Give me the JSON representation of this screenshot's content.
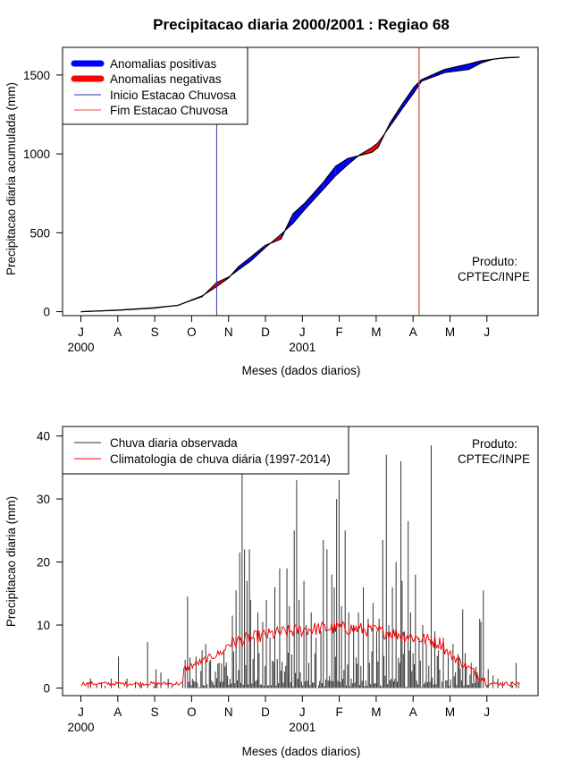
{
  "title": "Precipitacao diaria 2000/2001 : Regiao 68",
  "chart_data": [
    {
      "type": "area",
      "ylabel": "Precipitacao diaria acumulada (mm)",
      "xlabel": "Meses (dados diarios)",
      "months": [
        "J",
        "A",
        "S",
        "O",
        "N",
        "D",
        "J",
        "F",
        "M",
        "A",
        "M",
        "J"
      ],
      "year_labels": [
        {
          "text": "2000",
          "month_index": 0
        },
        {
          "text": "2001",
          "month_index": 6
        }
      ],
      "ylim": [
        -25,
        1675
      ],
      "yticks": [
        0,
        500,
        1000,
        1500
      ],
      "legend": [
        "Anomalias positivas",
        "Anomalias negativas",
        "Inicio Estacao Chuvosa",
        "Fim Estacao Chuvosa"
      ],
      "product_text": [
        "Produto:",
        "CPTEC/INPE"
      ],
      "inicio_day": 112,
      "fim_day": 279,
      "colors": {
        "positive": "#0000ff",
        "negative": "#ff0000",
        "inicio": "#3333aa",
        "fim": "#dd5533"
      },
      "observed": [
        [
          0,
          0
        ],
        [
          30,
          10
        ],
        [
          60,
          25
        ],
        [
          80,
          40
        ],
        [
          100,
          100
        ],
        [
          112,
          160
        ],
        [
          122,
          215
        ],
        [
          130,
          285
        ],
        [
          140,
          345
        ],
        [
          152,
          420
        ],
        [
          165,
          460
        ],
        [
          175,
          620
        ],
        [
          185,
          690
        ],
        [
          200,
          820
        ],
        [
          210,
          920
        ],
        [
          220,
          970
        ],
        [
          230,
          990
        ],
        [
          240,
          1010
        ],
        [
          245,
          1040
        ],
        [
          255,
          1195
        ],
        [
          265,
          1315
        ],
        [
          275,
          1425
        ],
        [
          281,
          1470
        ],
        [
          300,
          1535
        ],
        [
          320,
          1570
        ],
        [
          330,
          1590
        ],
        [
          340,
          1600
        ],
        [
          350,
          1610
        ],
        [
          362,
          1613
        ]
      ],
      "climatology": [
        [
          0,
          0
        ],
        [
          30,
          8
        ],
        [
          60,
          22
        ],
        [
          80,
          40
        ],
        [
          100,
          95
        ],
        [
          112,
          185
        ],
        [
          122,
          220
        ],
        [
          130,
          265
        ],
        [
          140,
          320
        ],
        [
          152,
          405
        ],
        [
          165,
          490
        ],
        [
          175,
          560
        ],
        [
          185,
          650
        ],
        [
          200,
          775
        ],
        [
          210,
          860
        ],
        [
          220,
          930
        ],
        [
          230,
          995
        ],
        [
          240,
          1040
        ],
        [
          245,
          1070
        ],
        [
          255,
          1175
        ],
        [
          265,
          1285
        ],
        [
          275,
          1390
        ],
        [
          281,
          1460
        ],
        [
          300,
          1515
        ],
        [
          320,
          1535
        ],
        [
          330,
          1575
        ],
        [
          340,
          1600
        ],
        [
          350,
          1608
        ],
        [
          362,
          1613
        ]
      ]
    },
    {
      "type": "bar",
      "ylabel": "Precipitacao diaria (mm)",
      "xlabel": "Meses (dados diarios)",
      "months": [
        "J",
        "A",
        "S",
        "O",
        "N",
        "D",
        "J",
        "F",
        "M",
        "A",
        "M",
        "J"
      ],
      "year_labels": [
        {
          "text": "2000",
          "month_index": 0
        },
        {
          "text": "2001",
          "month_index": 6
        }
      ],
      "ylim": [
        -1.2,
        41.5
      ],
      "yticks": [
        0,
        10,
        20,
        30,
        40
      ],
      "legend": [
        "Chuva diaria observada",
        "Climatologia de chuva diária (1997-2014)"
      ],
      "product_text": [
        "Produto:",
        "CPTEC/INPE"
      ],
      "colors": {
        "observed": "#333333",
        "climatology": "#ff0000"
      },
      "daily_peaks": [
        [
          8,
          1.5
        ],
        [
          17,
          0.8
        ],
        [
          25,
          1.5
        ],
        [
          31,
          5
        ],
        [
          38,
          1.5
        ],
        [
          45,
          1
        ],
        [
          55,
          7.3
        ],
        [
          62,
          3
        ],
        [
          66,
          2.5
        ],
        [
          72,
          1.5
        ],
        [
          84,
          1.2
        ],
        [
          86,
          4.5
        ],
        [
          88,
          14.5
        ],
        [
          95,
          5
        ],
        [
          100,
          6
        ],
        [
          103,
          7
        ],
        [
          107,
          4.5
        ],
        [
          111,
          2.6
        ],
        [
          114,
          4
        ],
        [
          118,
          6
        ],
        [
          125,
          11.5
        ],
        [
          128,
          15.5
        ],
        [
          131,
          21.5
        ],
        [
          133,
          34
        ],
        [
          135,
          22
        ],
        [
          137,
          17
        ],
        [
          139,
          22
        ],
        [
          140,
          14
        ],
        [
          143,
          8
        ],
        [
          146,
          12
        ],
        [
          150,
          10.5
        ],
        [
          153,
          14
        ],
        [
          156,
          8
        ],
        [
          160,
          16
        ],
        [
          164,
          19
        ],
        [
          170,
          19
        ],
        [
          172,
          13
        ],
        [
          176,
          25
        ],
        [
          178,
          33
        ],
        [
          180,
          14
        ],
        [
          184,
          17
        ],
        [
          186,
          10
        ],
        [
          190,
          12
        ],
        [
          194,
          8
        ],
        [
          198,
          9
        ],
        [
          200,
          23.5
        ],
        [
          203,
          22
        ],
        [
          207,
          18
        ],
        [
          209,
          16
        ],
        [
          211,
          30
        ],
        [
          213,
          33
        ],
        [
          215,
          13
        ],
        [
          218,
          25
        ],
        [
          221,
          12
        ],
        [
          225,
          10
        ],
        [
          229,
          12
        ],
        [
          233,
          16
        ],
        [
          237,
          11
        ],
        [
          241,
          13.5
        ],
        [
          244,
          9
        ],
        [
          246,
          11
        ],
        [
          249,
          23.5
        ],
        [
          252,
          37
        ],
        [
          254,
          10
        ],
        [
          257,
          16
        ],
        [
          260,
          20
        ],
        [
          264,
          36
        ],
        [
          265,
          17
        ],
        [
          267,
          9
        ],
        [
          270,
          26.5
        ],
        [
          272,
          12
        ],
        [
          276,
          18
        ],
        [
          279,
          8
        ],
        [
          282,
          10
        ],
        [
          285,
          7
        ],
        [
          289,
          38.5
        ],
        [
          292,
          9
        ],
        [
          295,
          6
        ],
        [
          299,
          8
        ],
        [
          303,
          5
        ],
        [
          307,
          7
        ],
        [
          312,
          5
        ],
        [
          315,
          12.5
        ],
        [
          318,
          3
        ],
        [
          322,
          4
        ],
        [
          327,
          2.5
        ],
        [
          329,
          11
        ],
        [
          330,
          10.5
        ],
        [
          332,
          15.5
        ],
        [
          336,
          3
        ],
        [
          340,
          2
        ],
        [
          344,
          1.5
        ],
        [
          348,
          1
        ],
        [
          355,
          1
        ],
        [
          359,
          4
        ]
      ]
    }
  ]
}
